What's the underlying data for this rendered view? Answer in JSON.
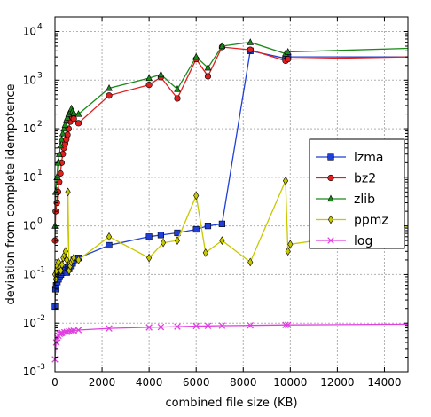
{
  "chart_data": {
    "type": "line",
    "title": "",
    "xlabel": "combined file size (KB)",
    "ylabel": "deviation from complete idempotence",
    "xlim": [
      0,
      15000
    ],
    "ylim": [
      0.001,
      20000
    ],
    "y_scale": "log",
    "grid": true,
    "legend_position": "center-right",
    "x_ticks": [
      0,
      2000,
      4000,
      6000,
      8000,
      10000,
      12000,
      14000
    ],
    "x_tick_labels": [
      "0",
      "2000",
      "4000",
      "6000",
      "8000",
      "10000",
      "12000",
      "14000"
    ],
    "y_ticks": [
      0.001,
      0.01,
      0.1,
      1,
      10,
      100,
      1000,
      10000
    ],
    "y_tick_labels": [
      {
        "base": "10",
        "exp": "-3"
      },
      {
        "base": "10",
        "exp": "-2"
      },
      {
        "base": "10",
        "exp": "-1"
      },
      {
        "base": "10",
        "exp": "0"
      },
      {
        "base": "10",
        "exp": "1"
      },
      {
        "base": "10",
        "exp": "2"
      },
      {
        "base": "10",
        "exp": "3"
      },
      {
        "base": "10",
        "exp": "4"
      }
    ],
    "series": [
      {
        "name": "lzma",
        "color": "#1f3fd6",
        "marker": "square",
        "x": [
          0,
          20,
          50,
          100,
          150,
          200,
          250,
          300,
          350,
          400,
          450,
          500,
          550,
          600,
          650,
          700,
          750,
          800,
          1000,
          2300,
          4000,
          4500,
          5200,
          6000,
          6500,
          7100,
          8300,
          9800,
          9900,
          15000
        ],
        "y": [
          0.022,
          0.05,
          0.06,
          0.07,
          0.08,
          0.09,
          0.1,
          0.11,
          0.12,
          0.13,
          0.12,
          0.11,
          0.14,
          0.13,
          0.16,
          0.15,
          0.17,
          0.2,
          0.22,
          0.4,
          0.6,
          0.65,
          0.72,
          0.85,
          1.0,
          1.1,
          4000,
          2800,
          3000,
          3000
        ]
      },
      {
        "name": "bz2",
        "color": "#e02020",
        "marker": "circle",
        "x": [
          0,
          30,
          80,
          130,
          180,
          230,
          280,
          330,
          380,
          430,
          480,
          530,
          580,
          650,
          700,
          750,
          800,
          1000,
          2300,
          4000,
          4500,
          5200,
          6000,
          6500,
          7100,
          8300,
          9800,
          9900,
          15000
        ],
        "y": [
          0.5,
          2,
          3,
          5,
          8,
          12,
          20,
          30,
          40,
          50,
          60,
          75,
          100,
          140,
          180,
          170,
          160,
          130,
          480,
          800,
          1150,
          420,
          2700,
          1200,
          4800,
          4200,
          2500,
          2700,
          3000
        ]
      },
      {
        "name": "zlib",
        "color": "#1a8a1a",
        "marker": "triangle",
        "x": [
          0,
          30,
          80,
          130,
          180,
          230,
          280,
          330,
          380,
          430,
          480,
          530,
          580,
          650,
          700,
          750,
          800,
          1000,
          2300,
          4000,
          4500,
          5200,
          6000,
          6500,
          7100,
          8300,
          9800,
          9900,
          15000
        ],
        "y": [
          1,
          5,
          10,
          20,
          30,
          45,
          60,
          80,
          100,
          120,
          150,
          170,
          200,
          220,
          260,
          230,
          210,
          200,
          680,
          1100,
          1300,
          650,
          3000,
          1800,
          5000,
          6000,
          3500,
          3800,
          4500
        ]
      },
      {
        "name": "ppmz",
        "color": "#c8c800",
        "marker": "diamond",
        "x": [
          0,
          30,
          60,
          100,
          150,
          200,
          250,
          300,
          350,
          400,
          450,
          500,
          550,
          600,
          650,
          700,
          750,
          800,
          1000,
          2300,
          4000,
          4600,
          5200,
          6000,
          6400,
          7100,
          8300,
          9800,
          9900,
          10000,
          15000
        ],
        "y": [
          0.1,
          0.08,
          0.12,
          0.15,
          0.18,
          0.14,
          0.12,
          0.16,
          0.22,
          0.25,
          0.3,
          0.2,
          5,
          0.12,
          0.15,
          0.18,
          0.2,
          0.22,
          0.2,
          0.6,
          0.22,
          0.45,
          0.5,
          4.2,
          0.28,
          0.5,
          0.18,
          8.5,
          0.3,
          0.42,
          0.95
        ]
      },
      {
        "name": "log",
        "color": "#e040e0",
        "marker": "x",
        "x": [
          0,
          50,
          100,
          150,
          200,
          250,
          300,
          400,
          500,
          600,
          700,
          800,
          1000,
          2300,
          4000,
          4500,
          5200,
          6000,
          6500,
          7100,
          8300,
          9800,
          9900,
          15000
        ],
        "y": [
          0.0018,
          0.004,
          0.005,
          0.0055,
          0.006,
          0.0062,
          0.0063,
          0.0065,
          0.0066,
          0.0068,
          0.0069,
          0.007,
          0.0072,
          0.0078,
          0.0082,
          0.0083,
          0.0085,
          0.0087,
          0.0088,
          0.0089,
          0.009,
          0.0092,
          0.0092,
          0.0095
        ]
      }
    ]
  }
}
